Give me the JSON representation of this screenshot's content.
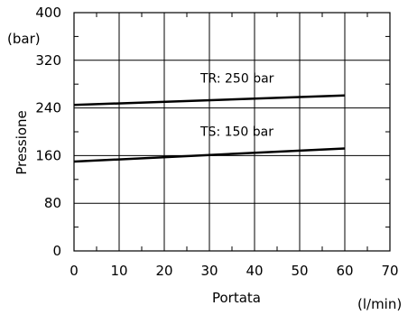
{
  "chart_data": {
    "type": "line",
    "xlabel": "Portata",
    "xunit": "(l/min)",
    "ylabel": "Pressione",
    "yunit": "(bar)",
    "xlim": [
      0,
      70
    ],
    "ylim": [
      0,
      400
    ],
    "xticks": [
      0,
      10,
      20,
      30,
      40,
      50,
      60,
      70
    ],
    "yticks": [
      0,
      80,
      160,
      240,
      320,
      400
    ],
    "grid": true,
    "series": [
      {
        "name": "TR: 250 bar",
        "x": [
          0,
          60
        ],
        "y": [
          245,
          261
        ]
      },
      {
        "name": "TS: 150 bar",
        "x": [
          0,
          60
        ],
        "y": [
          150,
          172
        ]
      }
    ]
  }
}
